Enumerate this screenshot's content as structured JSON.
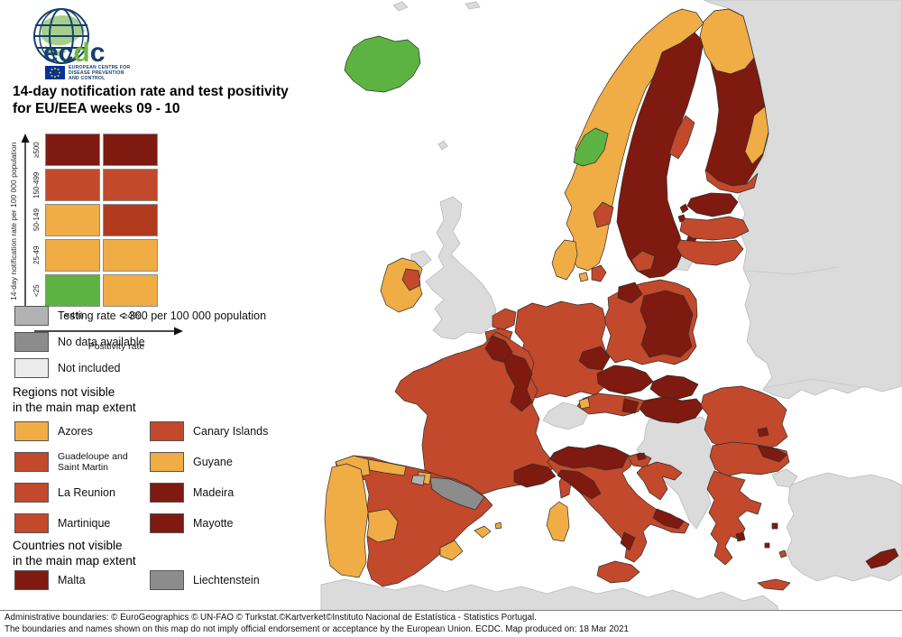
{
  "logo": {
    "wm1": "ec",
    "wm2": "d",
    "wm3": "c",
    "org1": "EUROPEAN CENTRE FOR",
    "org2": "DISEASE PREVENTION",
    "org3": "AND CONTROL"
  },
  "title": {
    "line1": "14-day notification rate and test positivity",
    "line2": "for EU/EEA weeks 09 - 10"
  },
  "palette": {
    "green": "#5CB342",
    "orange": "#F0AC45",
    "red": "#C2492B",
    "red_dark": "#B03A1E",
    "maroon": "#7E1A0F",
    "gray_testing": "#B2B2B2",
    "gray_nodata": "#8C8C8C",
    "gray_notincluded": "#ECECEC",
    "noneu": "#DBDBDB",
    "sea": "#FFFFFF"
  },
  "matrix_legend": {
    "y_axis_label": "14-day notification rate per 100 000 population",
    "x_axis_label": "Positivity rate",
    "col_labels": [
      "<4%",
      "≥4%"
    ],
    "rows": [
      {
        "label": "≥500",
        "cells": [
          "maroon",
          "maroon"
        ]
      },
      {
        "label": "150-499",
        "cells": [
          "red",
          "red"
        ]
      },
      {
        "label": "50-149",
        "cells": [
          "orange",
          "red_dark"
        ]
      },
      {
        "label": "25-49",
        "cells": [
          "orange",
          "orange"
        ]
      },
      {
        "label": "<25",
        "cells": [
          "green",
          "orange"
        ]
      }
    ]
  },
  "extra_legend": [
    {
      "color": "gray_testing",
      "label": "Testing rate < 300 per 100 000 population"
    },
    {
      "color": "gray_nodata",
      "label": "No data available"
    },
    {
      "color": "gray_notincluded",
      "label": "Not included"
    }
  ],
  "regions_section": {
    "heading_line1": "Regions not visible",
    "heading_line2": "in the main map extent",
    "items": [
      {
        "color": "orange",
        "label": "Azores"
      },
      {
        "color": "red",
        "label": "Canary Islands"
      },
      {
        "color": "red",
        "label": "Guadeloupe and Saint Martin",
        "small": true
      },
      {
        "color": "orange",
        "label": "Guyane"
      },
      {
        "color": "red",
        "label": "La Reunion"
      },
      {
        "color": "maroon",
        "label": "Madeira"
      },
      {
        "color": "red",
        "label": "Martinique"
      },
      {
        "color": "maroon",
        "label": "Mayotte"
      }
    ]
  },
  "countries_section": {
    "heading_line1": "Countries not visible",
    "heading_line2": "in the main map extent",
    "items": [
      {
        "color": "maroon",
        "label": "Malta"
      },
      {
        "color": "gray_nodata",
        "label": "Liechtenstein"
      }
    ]
  },
  "footer": {
    "line1": "Administrative boundaries: © EuroGeographics © UN-FAO © Turkstat.©Kartverket©Instituto Nacional de Estatística - Statistics Portugal.",
    "line2": "The boundaries and names shown on this map do not imply official endorsement or acceptance by the European Union. ECDC. Map produced on: 18 Mar 2021"
  },
  "map": {
    "regions": [
      {
        "id": "russia",
        "color": "noneu"
      },
      {
        "id": "balkans",
        "color": "noneu"
      },
      {
        "id": "turkey",
        "color": "noneu"
      },
      {
        "id": "turkey_nw",
        "color": "noneu"
      },
      {
        "id": "africa",
        "color": "noneu"
      },
      {
        "id": "uk",
        "color": "noneu"
      },
      {
        "id": "n_ireland",
        "color": "noneu"
      },
      {
        "id": "switzerland",
        "color": "noneu"
      },
      {
        "id": "kaliningrad",
        "color": "noneu"
      },
      {
        "id": "svalbard1",
        "color": "noneu"
      },
      {
        "id": "svalbard2",
        "color": "noneu"
      },
      {
        "id": "faroe",
        "color": "noneu"
      },
      {
        "id": "iceland",
        "color": "green"
      },
      {
        "id": "norway",
        "color": "orange"
      },
      {
        "id": "trondelag",
        "color": "green"
      },
      {
        "id": "oslo_region",
        "color": "red"
      },
      {
        "id": "sweden",
        "color": "maroon"
      },
      {
        "id": "sweden_ne",
        "color": "red"
      },
      {
        "id": "sweden_s",
        "color": "red"
      },
      {
        "id": "gotland",
        "color": "maroon"
      },
      {
        "id": "finland",
        "color": "maroon"
      },
      {
        "id": "lapland",
        "color": "orange"
      },
      {
        "id": "finland_e",
        "color": "orange"
      },
      {
        "id": "finland_s",
        "color": "red"
      },
      {
        "id": "estonia",
        "color": "maroon"
      },
      {
        "id": "estonia_isl1",
        "color": "maroon"
      },
      {
        "id": "estonia_isl2",
        "color": "maroon"
      },
      {
        "id": "latvia",
        "color": "red"
      },
      {
        "id": "lithuania",
        "color": "red"
      },
      {
        "id": "jutland",
        "color": "orange"
      },
      {
        "id": "funen",
        "color": "orange"
      },
      {
        "id": "zealand",
        "color": "red"
      },
      {
        "id": "ireland",
        "color": "orange"
      },
      {
        "id": "ireland_e",
        "color": "red"
      },
      {
        "id": "netherlands",
        "color": "red"
      },
      {
        "id": "belgium",
        "color": "red"
      },
      {
        "id": "luxembourg",
        "color": "maroon"
      },
      {
        "id": "germany",
        "color": "red"
      },
      {
        "id": "germany_e",
        "color": "maroon"
      },
      {
        "id": "poland",
        "color": "red"
      },
      {
        "id": "poland_c",
        "color": "maroon"
      },
      {
        "id": "poland_nw",
        "color": "maroon"
      },
      {
        "id": "czechia",
        "color": "maroon"
      },
      {
        "id": "slovakia",
        "color": "maroon"
      },
      {
        "id": "hungary",
        "color": "maroon"
      },
      {
        "id": "austria",
        "color": "red"
      },
      {
        "id": "austria_e",
        "color": "maroon"
      },
      {
        "id": "vorarlberg",
        "color": "orange"
      },
      {
        "id": "france",
        "color": "red"
      },
      {
        "id": "france_n",
        "color": "maroon"
      },
      {
        "id": "france_e",
        "color": "maroon"
      },
      {
        "id": "provence",
        "color": "maroon"
      },
      {
        "id": "corsica",
        "color": "red"
      },
      {
        "id": "spain",
        "color": "red"
      },
      {
        "id": "galicia",
        "color": "orange"
      },
      {
        "id": "asturias",
        "color": "orange"
      },
      {
        "id": "navarra",
        "color": "orange"
      },
      {
        "id": "extremadura",
        "color": "orange"
      },
      {
        "id": "murcia",
        "color": "orange"
      },
      {
        "id": "larioja",
        "color": "gray_testing"
      },
      {
        "id": "aragcat",
        "color": "gray_nodata"
      },
      {
        "id": "balearics",
        "color": "orange"
      },
      {
        "id": "balearics2",
        "color": "orange"
      },
      {
        "id": "portugal",
        "color": "orange"
      },
      {
        "id": "italy",
        "color": "red"
      },
      {
        "id": "italy_n",
        "color": "maroon"
      },
      {
        "id": "italy_tuscany",
        "color": "maroon"
      },
      {
        "id": "campania",
        "color": "maroon"
      },
      {
        "id": "puglia",
        "color": "maroon"
      },
      {
        "id": "sicily",
        "color": "red"
      },
      {
        "id": "sardinia",
        "color": "orange"
      },
      {
        "id": "slovenia",
        "color": "red"
      },
      {
        "id": "slovenia_d",
        "color": "maroon"
      },
      {
        "id": "croatia",
        "color": "red"
      },
      {
        "id": "romania",
        "color": "red"
      },
      {
        "id": "bucharest",
        "color": "maroon"
      },
      {
        "id": "bulgaria",
        "color": "red"
      },
      {
        "id": "bulgaria_ne",
        "color": "maroon"
      },
      {
        "id": "greece",
        "color": "red"
      },
      {
        "id": "crete",
        "color": "red"
      },
      {
        "id": "athens",
        "color": "maroon"
      },
      {
        "id": "gisl1",
        "color": "maroon"
      },
      {
        "id": "gisl2",
        "color": "maroon"
      },
      {
        "id": "gisl3",
        "color": "red"
      },
      {
        "id": "cyprus",
        "color": "maroon"
      }
    ]
  }
}
